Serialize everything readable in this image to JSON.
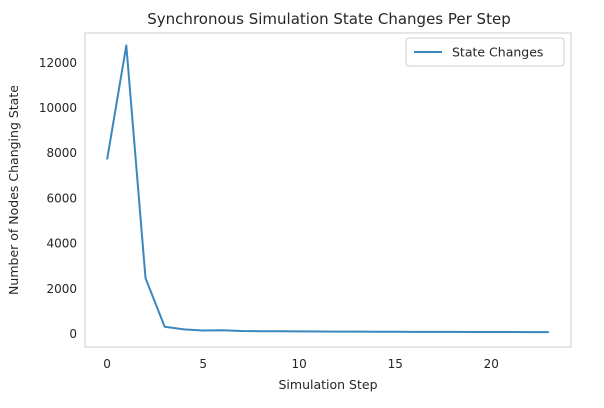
{
  "chart_data": {
    "type": "line",
    "title": "Synchronous Simulation State Changes Per Step",
    "xlabel": "Simulation Step",
    "ylabel": "Number of Nodes Changing State",
    "xlim": [
      -1.15,
      24.15
    ],
    "ylim": [
      -600,
      13300
    ],
    "x_ticks": [
      0,
      5,
      10,
      15,
      20
    ],
    "y_ticks": [
      0,
      2000,
      4000,
      6000,
      8000,
      10000,
      12000
    ],
    "grid": false,
    "legend_position": "top-right",
    "series": [
      {
        "name": "State Changes",
        "color": "#3a87bf",
        "x": [
          0,
          1,
          2,
          3,
          4,
          5,
          6,
          7,
          8,
          9,
          10,
          11,
          12,
          13,
          14,
          15,
          16,
          17,
          18,
          19,
          20,
          21,
          22,
          23
        ],
        "y": [
          7700,
          12750,
          2450,
          300,
          180,
          130,
          140,
          110,
          100,
          95,
          90,
          85,
          80,
          80,
          75,
          75,
          70,
          70,
          68,
          65,
          65,
          62,
          60,
          60
        ]
      }
    ]
  }
}
